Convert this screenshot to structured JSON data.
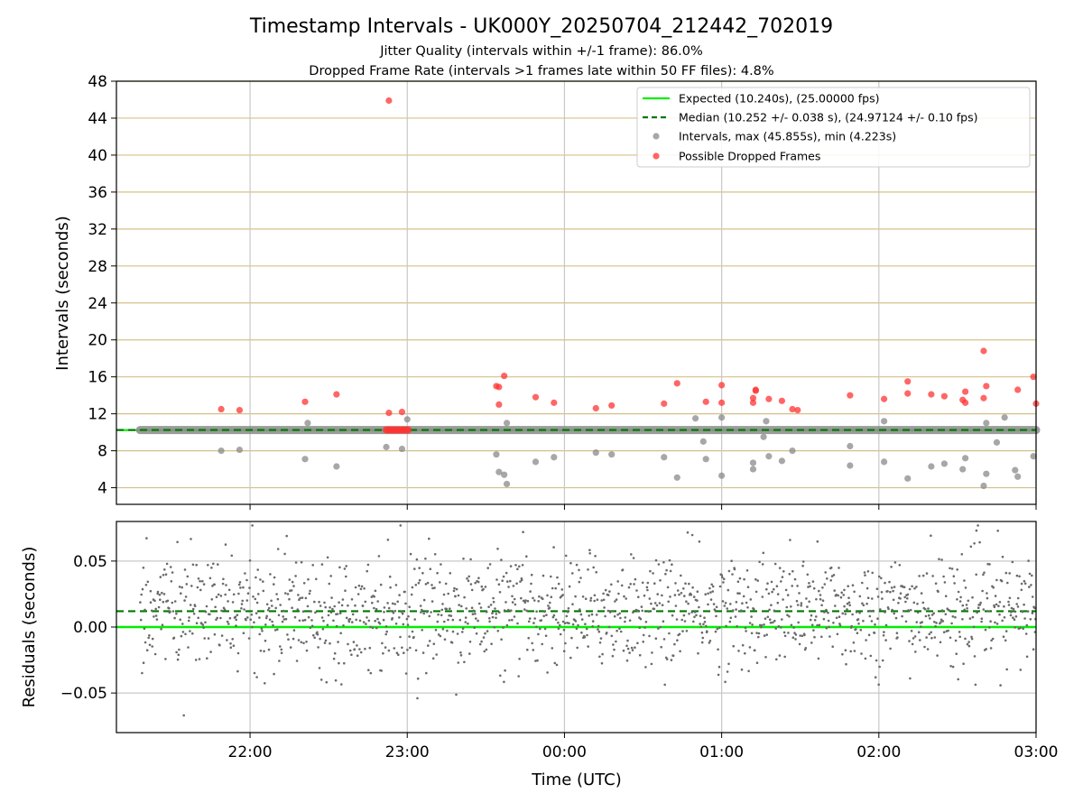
{
  "titles": {
    "main": "Timestamp Intervals - UK000Y_20250704_212442_702019",
    "line2": "Jitter Quality (intervals within +/-1 frame): 86.0%",
    "line3": "Dropped Frame Rate (intervals >1 frames late within 50 FF files): 4.8%"
  },
  "colors": {
    "expected": "#00ee00",
    "median": "#007700",
    "intervals": "#8a8a8a",
    "dropped": "#ff3333",
    "gridline_horizontal": "#d4c088",
    "gridline_vertical": "#c8c8c8",
    "residual_points": "#6a6a6a"
  },
  "chart_data": [
    {
      "type": "scatter",
      "panel": "top",
      "ylabel": "Intervals (seconds)",
      "ylim": [
        2.2,
        48
      ],
      "y_ticks": [
        "4",
        "8",
        "12",
        "16",
        "20",
        "24",
        "28",
        "32",
        "36",
        "40",
        "44",
        "48"
      ],
      "x_range": [
        "21:09",
        "03:00"
      ],
      "grid": true,
      "legend_placement": "top-right",
      "legend": [
        "Expected (10.240s), (25.00000 fps)",
        "Median (10.252 +/- 0.038 s), (24.97124 +/- 0.10 fps)",
        "Intervals, max (45.855s), min (4.223s)",
        "Possible Dropped Frames"
      ],
      "expected_interval": 10.24,
      "median_interval": 10.252,
      "series": [
        {
          "name": "Intervals, max (45.855s), min (4.223s)",
          "points": [
            [
              "21:49",
              8.0
            ],
            [
              "21:56",
              8.1
            ],
            [
              "22:21",
              7.1
            ],
            [
              "22:33",
              6.3
            ],
            [
              "22:52",
              8.4
            ],
            [
              "22:58",
              8.2
            ],
            [
              "23:35",
              5.7
            ],
            [
              "23:37",
              5.4
            ],
            [
              "23:38",
              4.4
            ],
            [
              "23:34",
              7.6
            ],
            [
              "23:49",
              6.8
            ],
            [
              "23:56",
              7.3
            ],
            [
              "00:12",
              7.8
            ],
            [
              "00:18",
              7.6
            ],
            [
              "00:38",
              7.3
            ],
            [
              "00:43",
              5.1
            ],
            [
              "00:54",
              7.1
            ],
            [
              "01:00",
              5.3
            ],
            [
              "01:12",
              6.7
            ],
            [
              "01:12",
              6.0
            ],
            [
              "01:18",
              7.4
            ],
            [
              "01:23",
              6.9
            ],
            [
              "01:27",
              8.0
            ],
            [
              "01:49",
              6.4
            ],
            [
              "01:49",
              8.5
            ],
            [
              "02:02",
              6.8
            ],
            [
              "02:11",
              5.0
            ],
            [
              "02:20",
              6.3
            ],
            [
              "02:25",
              6.6
            ],
            [
              "02:32",
              6.0
            ],
            [
              "02:33",
              7.2
            ],
            [
              "02:40",
              4.2
            ],
            [
              "02:41",
              5.5
            ],
            [
              "02:45",
              8.9
            ],
            [
              "02:52",
              5.9
            ],
            [
              "02:53",
              5.2
            ],
            [
              "02:59",
              7.4
            ],
            [
              "00:50",
              11.5
            ],
            [
              "01:00",
              11.6
            ],
            [
              "01:17",
              11.2
            ],
            [
              "02:02",
              11.2
            ],
            [
              "02:41",
              11.0
            ],
            [
              "02:48",
              11.6
            ],
            [
              "22:22",
              11.0
            ],
            [
              "23:00",
              11.4
            ],
            [
              "23:38",
              11.0
            ],
            [
              "00:53",
              9.0
            ],
            [
              "01:16",
              9.5
            ]
          ]
        },
        {
          "name": "Possible Dropped Frames",
          "points": [
            [
              "22:53",
              45.9
            ],
            [
              "21:49",
              12.5
            ],
            [
              "21:56",
              12.4
            ],
            [
              "22:21",
              13.3
            ],
            [
              "22:33",
              14.1
            ],
            [
              "22:53",
              12.1
            ],
            [
              "22:58",
              12.2
            ],
            [
              "23:34",
              15.0
            ],
            [
              "23:35",
              14.9
            ],
            [
              "23:37",
              16.1
            ],
            [
              "23:35",
              13.0
            ],
            [
              "23:49",
              13.8
            ],
            [
              "23:56",
              13.2
            ],
            [
              "00:12",
              12.6
            ],
            [
              "00:18",
              12.9
            ],
            [
              "00:38",
              13.1
            ],
            [
              "00:43",
              15.3
            ],
            [
              "00:54",
              13.3
            ],
            [
              "01:00",
              15.1
            ],
            [
              "01:00",
              13.2
            ],
            [
              "01:12",
              13.2
            ],
            [
              "01:12",
              13.7
            ],
            [
              "01:13",
              14.5
            ],
            [
              "01:13",
              14.6
            ],
            [
              "01:18",
              13.6
            ],
            [
              "01:23",
              13.4
            ],
            [
              "01:27",
              12.5
            ],
            [
              "01:29",
              12.4
            ],
            [
              "01:49",
              14.0
            ],
            [
              "02:02",
              13.6
            ],
            [
              "02:11",
              14.2
            ],
            [
              "02:11",
              15.5
            ],
            [
              "02:20",
              14.1
            ],
            [
              "02:25",
              13.9
            ],
            [
              "02:32",
              13.5
            ],
            [
              "02:33",
              14.4
            ],
            [
              "02:33",
              13.2
            ],
            [
              "02:40",
              13.7
            ],
            [
              "02:40",
              18.8
            ],
            [
              "02:41",
              15.0
            ],
            [
              "02:53",
              14.6
            ],
            [
              "02:59",
              16.0
            ],
            [
              "03:00",
              13.1
            ]
          ]
        }
      ]
    },
    {
      "type": "scatter",
      "panel": "bottom",
      "xlabel": "Time (UTC)",
      "ylabel": "Residuals (seconds)",
      "ylim": [
        -0.08,
        0.08
      ],
      "y_ticks": [
        "−0.05",
        "0.00",
        "0.05"
      ],
      "x_tick_labels": [
        "22:00",
        "23:00",
        "00:00",
        "01:00",
        "02:00",
        "03:00"
      ],
      "x_range": [
        "21:09",
        "03:00"
      ],
      "expected_residual": 0.0,
      "median_residual": 0.012,
      "grid": true
    }
  ]
}
